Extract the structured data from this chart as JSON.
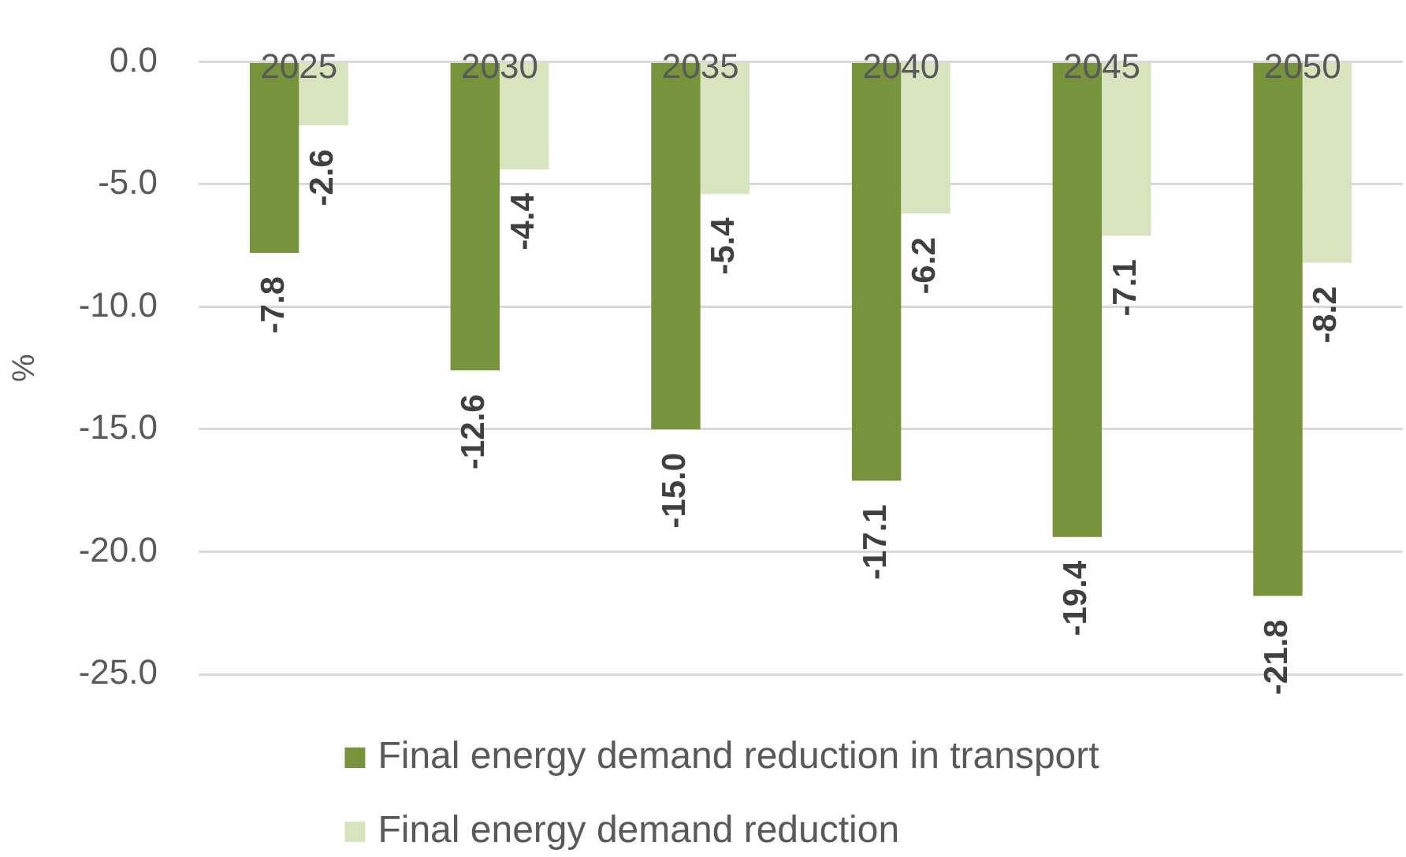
{
  "chart_data": {
    "type": "bar",
    "ylabel": "%",
    "categories": [
      "2025",
      "2030",
      "2035",
      "2040",
      "2045",
      "2050"
    ],
    "series": [
      {
        "name": "Final energy demand reduction in transport",
        "color": "#77933c",
        "values": [
          -7.8,
          -12.6,
          -15.0,
          -17.1,
          -19.4,
          -21.8
        ],
        "value_labels": [
          "-7.8",
          "-12.6",
          "-15.0",
          "-17.1",
          "-19.4",
          "-21.8"
        ]
      },
      {
        "name": "Final energy demand reduction",
        "color": "#d7e4bd",
        "values": [
          -2.6,
          -4.4,
          -5.4,
          -6.2,
          -7.1,
          -8.2
        ],
        "value_labels": [
          "-2.6",
          "-4.4",
          "-5.4",
          "-6.2",
          "-7.1",
          "-8.2"
        ]
      }
    ],
    "ylim": [
      -25,
      0
    ],
    "yticks": [
      {
        "value": -25,
        "label": "-25.0"
      },
      {
        "value": -20,
        "label": "-20.0"
      },
      {
        "value": -15,
        "label": "-15.0"
      },
      {
        "value": -10,
        "label": "-10.0"
      },
      {
        "value": -5,
        "label": "-5.0"
      },
      {
        "value": 0,
        "label": "0.0"
      }
    ],
    "grid": "y",
    "legend": "bottom"
  }
}
